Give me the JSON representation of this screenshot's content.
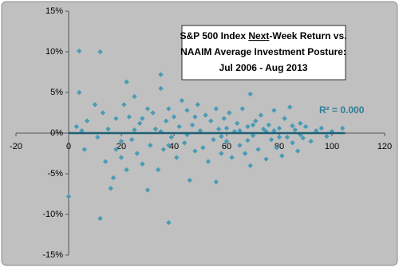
{
  "chart_data": {
    "type": "scatter",
    "title_lines": [
      [
        "S&P 500 Index ",
        "Next",
        "-Week Return vs."
      ],
      [
        "NAAIM Average Investment Posture:"
      ],
      [
        "Jul 2006 - Aug 2013"
      ]
    ],
    "annotation": "R² = 0.000",
    "color": "#4a9bb5",
    "trendline": {
      "color": "#1f5f74",
      "x": [
        0,
        105
      ],
      "values": [
        0,
        0
      ]
    },
    "xlim": [
      -20,
      120
    ],
    "xticks": [
      -20,
      0,
      20,
      40,
      60,
      80,
      100,
      120
    ],
    "ylim": [
      -15,
      15
    ],
    "yticks": [
      {
        "value": -15,
        "label": "-15%"
      },
      {
        "value": -10,
        "label": "-10%"
      },
      {
        "value": -5,
        "label": "-5%"
      },
      {
        "value": 0,
        "label": "0%"
      },
      {
        "value": 5,
        "label": "5%"
      },
      {
        "value": 10,
        "label": "10%"
      },
      {
        "value": 15,
        "label": "15%"
      }
    ],
    "x": [
      0,
      3,
      4,
      4,
      5,
      6,
      7,
      10,
      11,
      12,
      12,
      13,
      14,
      15,
      16,
      17,
      18,
      20,
      21,
      22,
      22,
      23,
      24,
      25,
      26,
      27,
      28,
      30,
      30,
      31,
      32,
      33,
      34,
      35,
      35,
      36,
      37,
      38,
      38,
      39,
      40,
      41,
      42,
      43,
      44,
      45,
      46,
      47,
      48,
      49,
      50,
      51,
      52,
      53,
      54,
      55,
      56,
      56,
      57,
      58,
      59,
      60,
      61,
      62,
      63,
      64,
      65,
      66,
      67,
      68,
      69,
      69,
      70,
      71,
      72,
      73,
      74,
      75,
      76,
      77,
      78,
      79,
      80,
      81,
      82,
      83,
      84,
      85,
      86,
      87,
      88,
      89,
      90,
      92,
      94,
      96,
      98,
      100,
      104,
      20,
      25,
      35,
      45,
      60,
      65,
      70,
      75,
      80,
      85,
      18,
      28,
      38,
      48,
      58,
      68,
      78,
      88
    ],
    "values": [
      -7.8,
      0.8,
      10.1,
      5,
      0.3,
      -2,
      1.5,
      3.5,
      -0.5,
      10,
      -10.5,
      2.5,
      -3.5,
      0.5,
      -6.8,
      -5.5,
      1.8,
      -1,
      3.5,
      6.3,
      -4.5,
      2,
      -0.8,
      0.4,
      -2.5,
      1.2,
      -3.8,
      3,
      -7,
      -1.5,
      2.5,
      0.5,
      -4.5,
      7.2,
      5.5,
      -2,
      1.5,
      -11,
      3,
      -0.5,
      2,
      -3,
      0.8,
      4,
      -1.2,
      2.8,
      -5.8,
      1,
      -2.2,
      3.5,
      0.3,
      -1.8,
      2.2,
      -3.5,
      1.5,
      -0.8,
      3,
      -6,
      0.5,
      -2.5,
      1.8,
      -1,
      2.5,
      -3,
      0.2,
      1.2,
      -1.5,
      3,
      -2.5,
      0.8,
      4.8,
      -4,
      -0.3,
      1.5,
      -2,
      2.2,
      0.5,
      -3.2,
      1,
      -0.8,
      2.8,
      -1.8,
      0.6,
      -2.8,
      1.8,
      -0.5,
      3.2,
      -1.2,
      0.4,
      -2.2,
      1.2,
      -0.6,
      0.8,
      -1,
      0.3,
      0.6,
      -0.4,
      0.2,
      0.6,
      -3,
      4.5,
      0.2,
      -0.2,
      0.6,
      0.3,
      1,
      0.2,
      -0.5,
      0.9,
      -2,
      1.8,
      -1.5,
      2,
      -0.4,
      -0.9,
      0.3,
      -0.2
    ]
  }
}
